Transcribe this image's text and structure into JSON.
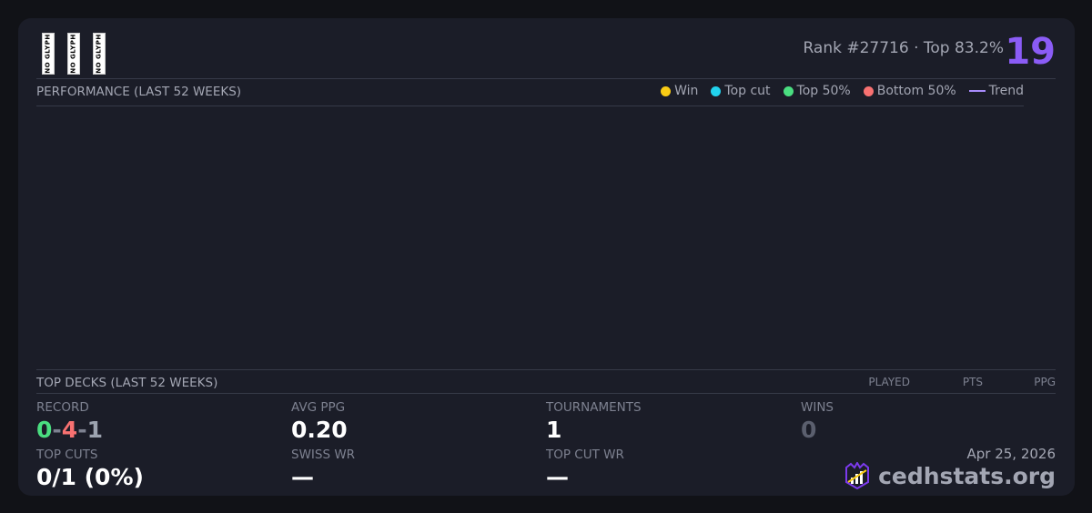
{
  "header": {
    "glyphs": [
      "NO GLYPH",
      "NO GLYPH",
      "NO GLYPH"
    ],
    "rank": "Rank #27716 · Top 83.2%",
    "score": "19"
  },
  "performance": {
    "title": "PERFORMANCE (LAST 52 WEEKS)",
    "legend": [
      {
        "label": "Win",
        "color": "#facc15"
      },
      {
        "label": "Top cut",
        "color": "#22d3ee"
      },
      {
        "label": "Top 50%",
        "color": "#4ade80"
      },
      {
        "label": "Bottom 50%",
        "color": "#f87171"
      },
      {
        "label": "Trend",
        "color": "#a78bfa"
      }
    ]
  },
  "decks": {
    "title": "TOP DECKS (LAST 52 WEEKS)",
    "columns": [
      "PLAYED",
      "PTS",
      "PPG"
    ]
  },
  "stats": {
    "record_label": "RECORD",
    "record": {
      "wins": "0",
      "losses": "4",
      "draws": "1",
      "sep": "-"
    },
    "avg_ppg_label": "AVG PPG",
    "avg_ppg": "0.20",
    "tournaments_label": "TOURNAMENTS",
    "tournaments": "1",
    "wins_label": "WINS",
    "wins": "0",
    "top_cuts_label": "TOP CUTS",
    "top_cuts": "0/1 (0%)",
    "swiss_wr_label": "SWISS WR",
    "swiss_wr": "—",
    "top_cut_wr_label": "TOP CUT WR",
    "top_cut_wr": "—"
  },
  "footer": {
    "date": "Apr 25, 2026",
    "brand": "cedhstats.org"
  }
}
